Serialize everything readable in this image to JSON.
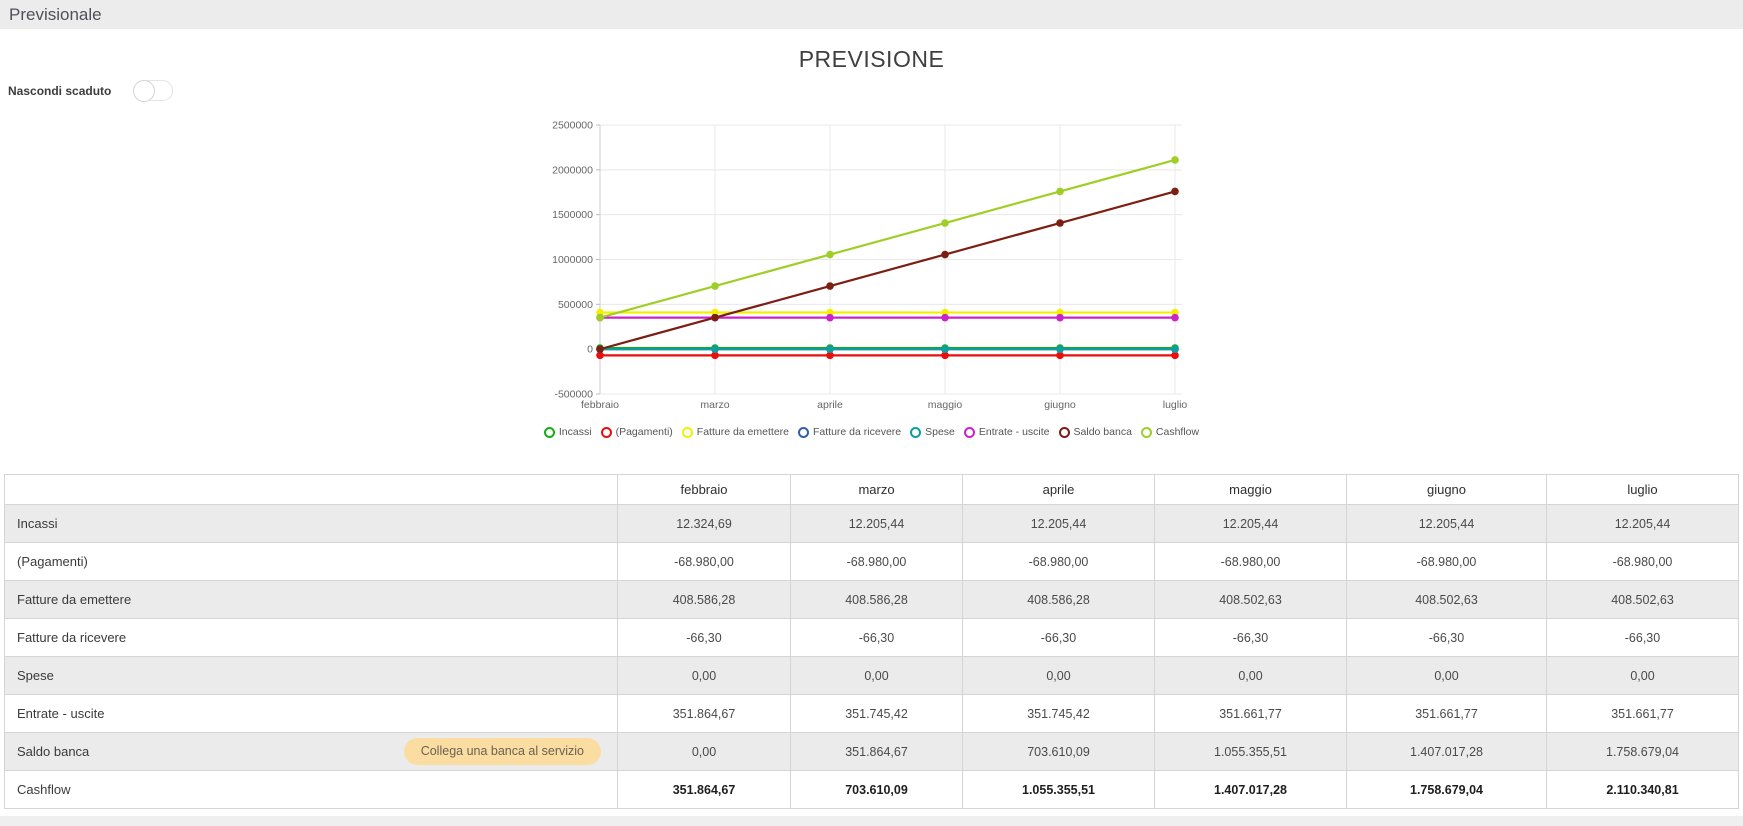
{
  "header": {
    "title": "Previsionale"
  },
  "controls": {
    "hide_expired_label": "Nascondi scaduto",
    "toggle_state": "off"
  },
  "chart_data": {
    "type": "line",
    "title": "PREVISIONE",
    "categories": [
      "febbraio",
      "marzo",
      "aprile",
      "maggio",
      "giugno",
      "luglio"
    ],
    "y_ticks": [
      2500000,
      2000000,
      1500000,
      1000000,
      500000,
      0,
      -500000
    ],
    "ylim": [
      -500000,
      2500000
    ],
    "grid": true,
    "legend_position": "bottom",
    "series": [
      {
        "name": "Incassi",
        "color": "#17ab17",
        "values": [
          12324.69,
          12205.44,
          12205.44,
          12205.44,
          12205.44,
          12205.44
        ]
      },
      {
        "name": "(Pagamenti)",
        "color": "#ee0d0d",
        "values": [
          -68980.0,
          -68980.0,
          -68980.0,
          -68980.0,
          -68980.0,
          -68980.0
        ]
      },
      {
        "name": "Fatture da emettere",
        "color": "#f0f000",
        "values": [
          408586.28,
          408586.28,
          408586.28,
          408502.63,
          408502.63,
          408502.63
        ]
      },
      {
        "name": "Fatture da ricevere",
        "color": "#2f5fae",
        "values": [
          -66.3,
          -66.3,
          -66.3,
          -66.3,
          -66.3,
          -66.3
        ]
      },
      {
        "name": "Spese",
        "color": "#0d9e9e",
        "values": [
          0,
          0,
          0,
          0,
          0,
          0
        ]
      },
      {
        "name": "Entrate - uscite",
        "color": "#cc22cc",
        "values": [
          351864.67,
          351745.42,
          351745.42,
          351661.77,
          351661.77,
          351661.77
        ]
      },
      {
        "name": "Saldo banca",
        "color": "#7c1e12",
        "values": [
          0,
          351864.67,
          703610.09,
          1055355.51,
          1407017.28,
          1758679.04
        ]
      },
      {
        "name": "Cashflow",
        "color": "#9fce26",
        "values": [
          351864.67,
          703610.09,
          1055355.51,
          1407017.28,
          1758679.04,
          2110340.81
        ]
      }
    ]
  },
  "table": {
    "columns": [
      "febbraio",
      "marzo",
      "aprile",
      "maggio",
      "giugno",
      "luglio"
    ],
    "rows": [
      {
        "label": "Incassi",
        "values": [
          "12.324,69",
          "12.205,44",
          "12.205,44",
          "12.205,44",
          "12.205,44",
          "12.205,44"
        ]
      },
      {
        "label": "(Pagamenti)",
        "values": [
          "-68.980,00",
          "-68.980,00",
          "-68.980,00",
          "-68.980,00",
          "-68.980,00",
          "-68.980,00"
        ]
      },
      {
        "label": "Fatture da emettere",
        "values": [
          "408.586,28",
          "408.586,28",
          "408.586,28",
          "408.502,63",
          "408.502,63",
          "408.502,63"
        ]
      },
      {
        "label": "Fatture da ricevere",
        "values": [
          "-66,30",
          "-66,30",
          "-66,30",
          "-66,30",
          "-66,30",
          "-66,30"
        ]
      },
      {
        "label": "Spese",
        "values": [
          "0,00",
          "0,00",
          "0,00",
          "0,00",
          "0,00",
          "0,00"
        ]
      },
      {
        "label": "Entrate - uscite",
        "values": [
          "351.864,67",
          "351.745,42",
          "351.745,42",
          "351.661,77",
          "351.661,77",
          "351.661,77"
        ]
      },
      {
        "label": "Saldo banca",
        "button": "Collega una banca al servizio",
        "values": [
          "0,00",
          "351.864,67",
          "703.610,09",
          "1.055.355,51",
          "1.407.017,28",
          "1.758.679,04"
        ]
      },
      {
        "label": "Cashflow",
        "bold": true,
        "values": [
          "351.864,67",
          "703.610,09",
          "1.055.355,51",
          "1.407.017,28",
          "1.758.679,04",
          "2.110.340,81"
        ]
      }
    ]
  },
  "colors": {
    "header_bar_bg": "#ececec",
    "table_alt_row_bg": "#ebebeb",
    "bank_button_bg": "#fbdda2",
    "bank_button_text": "#6a6152"
  }
}
